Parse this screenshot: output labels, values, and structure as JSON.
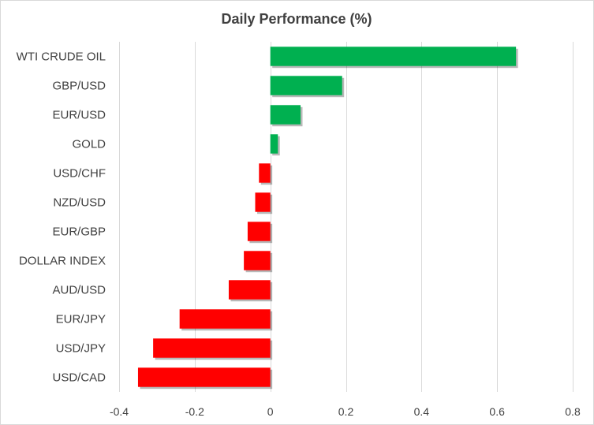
{
  "chart_data": {
    "type": "bar",
    "orientation": "horizontal",
    "title": "Daily Performance  (%)",
    "categories": [
      "WTI CRUDE OIL",
      "GBP/USD",
      "EUR/USD",
      "GOLD",
      "USD/CHF",
      "NZD/USD",
      "EUR/GBP",
      "DOLLAR INDEX",
      "AUD/USD",
      "EUR/JPY",
      "USD/JPY",
      "USD/CAD"
    ],
    "values": [
      0.65,
      0.19,
      0.08,
      0.02,
      -0.03,
      -0.04,
      -0.06,
      -0.07,
      -0.11,
      -0.24,
      -0.31,
      -0.35
    ],
    "xlim": [
      -0.4,
      0.8
    ],
    "x_ticks": [
      -0.4,
      -0.2,
      0,
      0.2,
      0.4,
      0.6,
      0.8
    ],
    "x_tick_labels": [
      "-0.4",
      "-0.2",
      "0",
      "0.2",
      "0.4",
      "0.6",
      "0.8"
    ],
    "grid": true,
    "legend": "none",
    "colors": {
      "positive": "#00b050",
      "negative": "#ff0000",
      "grid": "#d9d9d9",
      "text": "#404040"
    }
  }
}
